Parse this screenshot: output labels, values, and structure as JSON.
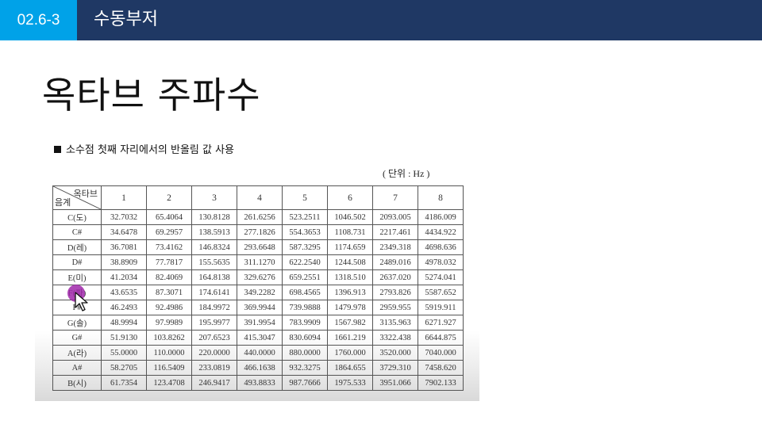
{
  "header": {
    "section_number": "02.6-3",
    "section_title": "수동부저"
  },
  "slide_title": "옥타브 주파수",
  "content": {
    "note": "소수점 첫째 자리에서의 반올림 값 사용",
    "unit": "( 단위 : Hz )",
    "table": {
      "corner_top": "옥타브",
      "corner_bottom": "음계",
      "octaves": [
        "1",
        "2",
        "3",
        "4",
        "5",
        "6",
        "7",
        "8"
      ],
      "rows": [
        {
          "note": "C(도)",
          "values": [
            "32.7032",
            "65.4064",
            "130.8128",
            "261.6256",
            "523.2511",
            "1046.502",
            "2093.005",
            "4186.009"
          ]
        },
        {
          "note": "C#",
          "values": [
            "34.6478",
            "69.2957",
            "138.5913",
            "277.1826",
            "554.3653",
            "1108.731",
            "2217.461",
            "4434.922"
          ]
        },
        {
          "note": "D(레)",
          "values": [
            "36.7081",
            "73.4162",
            "146.8324",
            "293.6648",
            "587.3295",
            "1174.659",
            "2349.318",
            "4698.636"
          ]
        },
        {
          "note": "D#",
          "values": [
            "38.8909",
            "77.7817",
            "155.5635",
            "311.1270",
            "622.2540",
            "1244.508",
            "2489.016",
            "4978.032"
          ]
        },
        {
          "note": "E(미)",
          "values": [
            "41.2034",
            "82.4069",
            "164.8138",
            "329.6276",
            "659.2551",
            "1318.510",
            "2637.020",
            "5274.041"
          ]
        },
        {
          "note": "F(파)",
          "values": [
            "43.6535",
            "87.3071",
            "174.6141",
            "349.2282",
            "698.4565",
            "1396.913",
            "2793.826",
            "5587.652"
          ]
        },
        {
          "note": "F#",
          "values": [
            "46.2493",
            "92.4986",
            "184.9972",
            "369.9944",
            "739.9888",
            "1479.978",
            "2959.955",
            "5919.911"
          ]
        },
        {
          "note": "G(솔)",
          "values": [
            "48.9994",
            "97.9989",
            "195.9977",
            "391.9954",
            "783.9909",
            "1567.982",
            "3135.963",
            "6271.927"
          ]
        },
        {
          "note": "G#",
          "values": [
            "51.9130",
            "103.8262",
            "207.6523",
            "415.3047",
            "830.6094",
            "1661.219",
            "3322.438",
            "6644.875"
          ]
        },
        {
          "note": "A(라)",
          "values": [
            "55.0000",
            "110.0000",
            "220.0000",
            "440.0000",
            "880.0000",
            "1760.000",
            "3520.000",
            "7040.000"
          ]
        },
        {
          "note": "A#",
          "values": [
            "58.2705",
            "116.5409",
            "233.0819",
            "466.1638",
            "932.3275",
            "1864.655",
            "3729.310",
            "7458.620"
          ]
        },
        {
          "note": "B(시)",
          "values": [
            "61.7354",
            "123.4708",
            "246.9417",
            "493.8833",
            "987.7666",
            "1975.533",
            "3951.066",
            "7902.133"
          ]
        }
      ]
    }
  },
  "colors": {
    "header_bg": "#1f3864",
    "section_badge": "#00a2e8",
    "cursor_highlight": "#a028aa"
  },
  "icons": {
    "cursor": "pointer-arrow-icon"
  }
}
